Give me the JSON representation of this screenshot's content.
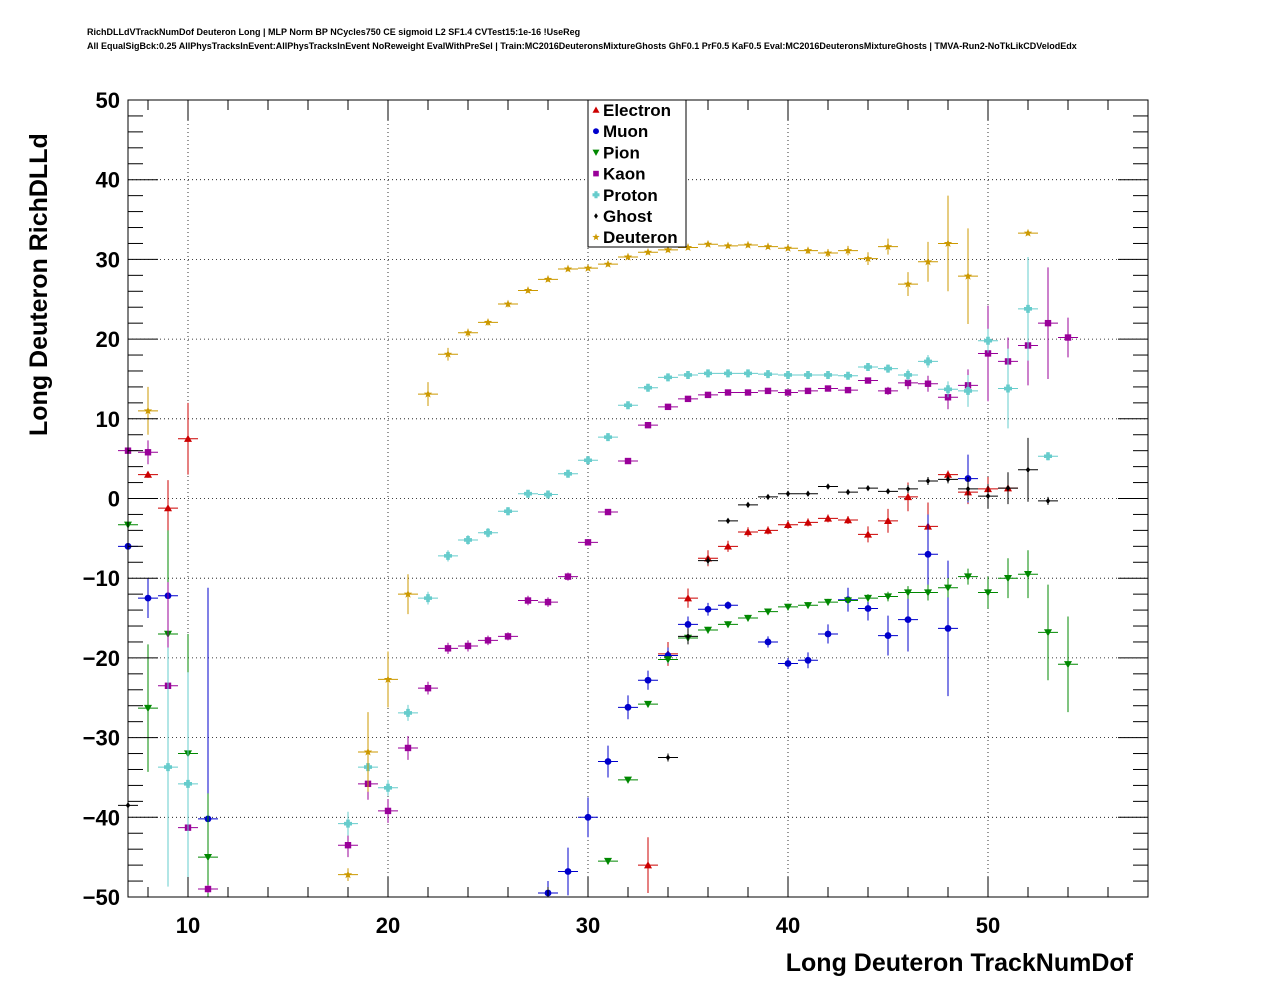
{
  "header": {
    "line1": "RichDLLdVTrackNumDof Deuteron Long | MLP Norm BP NCycles750 CE sigmoid L2 SF1.4 CVTest15:1e-16 !UseReg",
    "line2": "All EqualSigBck:0.25 AllPhysTracksInEvent:AllPhysTracksInEvent NoReweight EvalWithPreSel | Train:MC2016DeuteronsMixtureGhosts GhF0.1 PrF0.5 KaF0.5 Eval:MC2016DeuteronsMixtureGhosts | TMVA-Run2-NoTkLikCDVelodEdx"
  },
  "chart_data": {
    "type": "scatter",
    "xlabel": "Long Deuteron TrackNumDof",
    "ylabel": "Long Deuteron RichDLLd",
    "xlim": [
      7,
      58
    ],
    "ylim": [
      -50,
      50
    ],
    "x_ticks": [
      "10",
      "20",
      "30",
      "40",
      "50"
    ],
    "x_tick_values": [
      10,
      20,
      30,
      40,
      50
    ],
    "y_ticks": [
      "50",
      "40",
      "30",
      "20",
      "10",
      "0",
      "−10",
      "−20",
      "−30",
      "−40",
      "−50"
    ],
    "y_tick_values": [
      50,
      40,
      30,
      20,
      10,
      0,
      -10,
      -20,
      -30,
      -40,
      -50
    ],
    "grid": true,
    "legend_position": "top-center",
    "series": [
      {
        "name": "Electron",
        "color": "#cc0000",
        "marker": "triangle-up",
        "points": [
          [
            8,
            3,
            0.4
          ],
          [
            9,
            -1.2,
            3.5
          ],
          [
            10,
            7.5,
            4.5
          ],
          [
            33,
            -46,
            3.5
          ],
          [
            34,
            -19.5,
            1.5
          ],
          [
            35,
            -12.5,
            1.2
          ],
          [
            36,
            -7.5,
            1
          ],
          [
            37,
            -6,
            0.7
          ],
          [
            38,
            -4.2,
            0.6
          ],
          [
            39,
            -4,
            0.5
          ],
          [
            40,
            -3.3,
            0.5
          ],
          [
            41,
            -3,
            0.5
          ],
          [
            42,
            -2.5,
            0.5
          ],
          [
            43,
            -2.7,
            0.5
          ],
          [
            44,
            -4.5,
            1
          ],
          [
            45,
            -2.8,
            1.5
          ],
          [
            46,
            0.2,
            1.8
          ],
          [
            47,
            -3.5,
            3
          ],
          [
            48,
            3,
            0.5
          ],
          [
            49,
            0.8,
            1.5
          ],
          [
            50,
            1.2,
            1.5
          ],
          [
            51,
            1.3,
            1.5
          ]
        ]
      },
      {
        "name": "Muon",
        "color": "#0000cc",
        "marker": "circle",
        "points": [
          [
            7,
            -6,
            0.3
          ],
          [
            8,
            -12.5,
            2.5
          ],
          [
            9,
            -12.2,
            5
          ],
          [
            11,
            -40.2,
            29
          ],
          [
            28,
            -49.5,
            1.5
          ],
          [
            29,
            -46.8,
            3
          ],
          [
            30,
            -40,
            2.5
          ],
          [
            31,
            -33,
            2
          ],
          [
            32,
            -26.2,
            1.5
          ],
          [
            33,
            -22.8,
            1.2
          ],
          [
            34,
            -19.7,
            1
          ],
          [
            35,
            -15.8,
            1
          ],
          [
            36,
            -13.9,
            0.8
          ],
          [
            37,
            -13.4,
            0.5
          ],
          [
            39,
            -18,
            0.7
          ],
          [
            40,
            -20.7,
            0.7
          ],
          [
            41,
            -20.3,
            1
          ],
          [
            42,
            -17,
            1.2
          ],
          [
            43,
            -12.7,
            1.5
          ],
          [
            44,
            -13.8,
            1.5
          ],
          [
            45,
            -17.2,
            2.5
          ],
          [
            46,
            -15.2,
            4
          ],
          [
            47,
            -7,
            5
          ],
          [
            48,
            -16.3,
            8.5
          ],
          [
            49,
            2.5,
            3
          ]
        ]
      },
      {
        "name": "Pion",
        "color": "#008800",
        "marker": "triangle-down",
        "points": [
          [
            7,
            -3.3,
            2
          ],
          [
            8,
            -26.3,
            8
          ],
          [
            9,
            -17,
            13
          ],
          [
            10,
            -32,
            15
          ],
          [
            11,
            -45,
            8
          ],
          [
            31,
            -45.5,
            0.3
          ],
          [
            32,
            -35.3,
            0.3
          ],
          [
            33,
            -25.8,
            0.3
          ],
          [
            34,
            -20.2,
            0.4
          ],
          [
            35,
            -17.5,
            0.4
          ],
          [
            36,
            -16.5,
            0.4
          ],
          [
            37,
            -15.8,
            0.4
          ],
          [
            38,
            -15,
            0.4
          ],
          [
            39,
            -14.2,
            0.4
          ],
          [
            40,
            -13.6,
            0.4
          ],
          [
            41,
            -13.4,
            0.4
          ],
          [
            42,
            -13,
            0.4
          ],
          [
            43,
            -12.8,
            0.4
          ],
          [
            44,
            -12.5,
            0.5
          ],
          [
            45,
            -12.3,
            0.6
          ],
          [
            46,
            -11.8,
            0.8
          ],
          [
            47,
            -11.8,
            1
          ],
          [
            48,
            -11.2,
            1.2
          ],
          [
            49,
            -9.8,
            1
          ],
          [
            50,
            -11.8,
            2
          ],
          [
            51,
            -10,
            2.5
          ],
          [
            52,
            -9.5,
            3
          ],
          [
            53,
            -16.8,
            6
          ],
          [
            54,
            -20.8,
            6
          ]
        ]
      },
      {
        "name": "Kaon",
        "color": "#990099",
        "marker": "square",
        "points": [
          [
            7,
            6,
            2.5
          ],
          [
            8,
            5.8,
            1.5
          ],
          [
            9,
            -23.5,
            13
          ],
          [
            10,
            -41.3,
            10
          ],
          [
            11,
            -49,
            0.5
          ],
          [
            18,
            -43.5,
            1.5
          ],
          [
            19,
            -35.8,
            2
          ],
          [
            20,
            -39.2,
            1.5
          ],
          [
            21,
            -31.3,
            1.5
          ],
          [
            22,
            -23.8,
            0.8
          ],
          [
            23,
            -18.8,
            0.7
          ],
          [
            24,
            -18.5,
            0.7
          ],
          [
            25,
            -17.8,
            0.6
          ],
          [
            26,
            -17.3,
            0.5
          ],
          [
            27,
            -12.8,
            0.6
          ],
          [
            28,
            -13,
            0.6
          ],
          [
            29,
            -9.8,
            0.5
          ],
          [
            30,
            -5.5,
            0.4
          ],
          [
            31,
            -1.7,
            0.3
          ],
          [
            32,
            4.7,
            0.3
          ],
          [
            33,
            9.2,
            0.3
          ],
          [
            34,
            11.5,
            0.3
          ],
          [
            35,
            12.5,
            0.3
          ],
          [
            36,
            13,
            0.3
          ],
          [
            37,
            13.3,
            0.3
          ],
          [
            38,
            13.3,
            0.3
          ],
          [
            39,
            13.5,
            0.3
          ],
          [
            40,
            13.3,
            0.3
          ],
          [
            41,
            13.5,
            0.3
          ],
          [
            42,
            13.8,
            0.3
          ],
          [
            43,
            13.6,
            0.3
          ],
          [
            44,
            14.8,
            0.3
          ],
          [
            45,
            13.5,
            0.5
          ],
          [
            46,
            14.5,
            0.8
          ],
          [
            47,
            14.4,
            1
          ],
          [
            48,
            12.7,
            1.5
          ],
          [
            49,
            14.2,
            2
          ],
          [
            50,
            18.2,
            6
          ],
          [
            51,
            17.2,
            3
          ],
          [
            52,
            19.2,
            5
          ],
          [
            53,
            22,
            7
          ],
          [
            54,
            20.2,
            2.5
          ]
        ]
      },
      {
        "name": "Proton",
        "color": "#66cccc",
        "marker": "cross",
        "points": [
          [
            9,
            -33.7,
            15
          ],
          [
            10,
            -35.8,
            14
          ],
          [
            18,
            -40.8,
            1.5
          ],
          [
            19,
            -33.7,
            1.5
          ],
          [
            20,
            -36.3,
            1
          ],
          [
            21,
            -26.9,
            1
          ],
          [
            22,
            -12.5,
            0.8
          ],
          [
            23,
            -7.2,
            0.7
          ],
          [
            24,
            -5.2,
            0.6
          ],
          [
            25,
            -4.3,
            0.6
          ],
          [
            26,
            -1.6,
            0.5
          ],
          [
            27,
            0.6,
            0.4
          ],
          [
            28,
            0.5,
            0.4
          ],
          [
            29,
            3.1,
            0.4
          ],
          [
            30,
            4.8,
            0.3
          ],
          [
            31,
            7.7,
            0.3
          ],
          [
            32,
            11.7,
            0.3
          ],
          [
            33,
            13.9,
            0.3
          ],
          [
            34,
            15.2,
            0.3
          ],
          [
            35,
            15.5,
            0.3
          ],
          [
            36,
            15.7,
            0.3
          ],
          [
            37,
            15.7,
            0.3
          ],
          [
            38,
            15.7,
            0.3
          ],
          [
            39,
            15.6,
            0.3
          ],
          [
            40,
            15.5,
            0.3
          ],
          [
            41,
            15.5,
            0.3
          ],
          [
            42,
            15.5,
            0.3
          ],
          [
            43,
            15.4,
            0.4
          ],
          [
            44,
            16.5,
            0.5
          ],
          [
            45,
            16.3,
            0.5
          ],
          [
            46,
            15.5,
            0.7
          ],
          [
            47,
            17.2,
            0.8
          ],
          [
            48,
            13.7,
            1
          ],
          [
            49,
            13.5,
            2
          ],
          [
            50,
            19.8,
            1.5
          ],
          [
            51,
            13.8,
            5
          ],
          [
            52,
            23.8,
            6.5
          ],
          [
            53,
            5.3,
            0.5
          ]
        ]
      },
      {
        "name": "Ghost",
        "color": "#000000",
        "marker": "diamond",
        "points": [
          [
            7,
            -38.5,
            0.5
          ],
          [
            34,
            -32.5,
            0.5
          ],
          [
            35,
            -17.3,
            1
          ],
          [
            36,
            -7.8,
            0.5
          ],
          [
            37,
            -2.8,
            0.3
          ],
          [
            38,
            -0.8,
            0.3
          ],
          [
            39,
            0.2,
            0.3
          ],
          [
            40,
            0.6,
            0.3
          ],
          [
            41,
            0.6,
            0.3
          ],
          [
            42,
            1.5,
            0.3
          ],
          [
            43,
            0.8,
            0.3
          ],
          [
            44,
            1.3,
            0.3
          ],
          [
            45,
            0.9,
            0.3
          ],
          [
            46,
            1.2,
            0.5
          ],
          [
            47,
            2.2,
            0.5
          ],
          [
            48,
            2.4,
            0.5
          ],
          [
            49,
            1.2,
            1.5
          ],
          [
            50,
            0.3,
            1.5
          ],
          [
            51,
            1.3,
            2
          ],
          [
            52,
            3.6,
            4
          ],
          [
            53,
            -0.3,
            0.5
          ]
        ]
      },
      {
        "name": "Deuteron",
        "color": "#cc9900",
        "marker": "star",
        "points": [
          [
            8,
            11,
            3
          ],
          [
            18,
            -47.2,
            0.8
          ],
          [
            19,
            -31.8,
            5
          ],
          [
            20,
            -22.7,
            3.5
          ],
          [
            21,
            -12,
            2.5
          ],
          [
            22,
            13.1,
            1.5
          ],
          [
            23,
            18.1,
            0.8
          ],
          [
            24,
            20.8,
            0.5
          ],
          [
            25,
            22.1,
            0.4
          ],
          [
            26,
            24.4,
            0.4
          ],
          [
            27,
            26.1,
            0.3
          ],
          [
            28,
            27.5,
            0.3
          ],
          [
            29,
            28.8,
            0.3
          ],
          [
            30,
            28.9,
            0.3
          ],
          [
            31,
            29.4,
            0.3
          ],
          [
            32,
            30.3,
            0.3
          ],
          [
            33,
            30.9,
            0.3
          ],
          [
            34,
            31.2,
            0.3
          ],
          [
            35,
            31.5,
            0.3
          ],
          [
            36,
            31.9,
            0.3
          ],
          [
            37,
            31.7,
            0.3
          ],
          [
            38,
            31.8,
            0.3
          ],
          [
            39,
            31.6,
            0.3
          ],
          [
            40,
            31.4,
            0.3
          ],
          [
            41,
            31.1,
            0.4
          ],
          [
            42,
            30.8,
            0.5
          ],
          [
            43,
            31.1,
            0.6
          ],
          [
            44,
            30.1,
            0.8
          ],
          [
            45,
            31.6,
            1
          ],
          [
            46,
            26.9,
            1.5
          ],
          [
            47,
            29.7,
            2.5
          ],
          [
            48,
            32,
            6
          ],
          [
            49,
            27.9,
            6
          ],
          [
            52,
            33.3,
            0.3
          ]
        ]
      }
    ]
  }
}
